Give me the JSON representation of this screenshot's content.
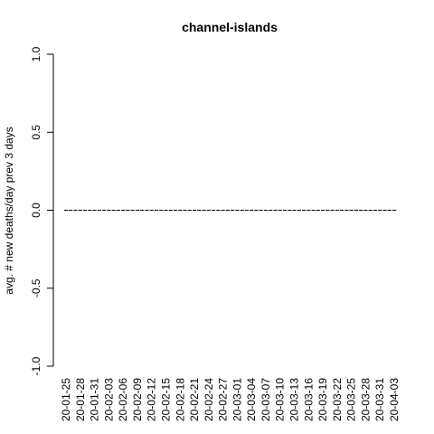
{
  "chart_data": {
    "type": "bar",
    "title": "channel-islands",
    "xlabel": "",
    "ylabel": "avg. # new deaths/day prev  3  days",
    "ylim": [
      -1.0,
      1.0
    ],
    "yticks": [
      "-1.0",
      "-0.5",
      "0.0",
      "0.5",
      "1.0"
    ],
    "ytick_values": [
      -1.0,
      -0.5,
      0.0,
      0.5,
      1.0
    ],
    "xtick_labels": [
      "20-01-25",
      "20-01-28",
      "20-01-31",
      "20-02-03",
      "20-02-06",
      "20-02-09",
      "20-02-12",
      "20-02-15",
      "20-02-18",
      "20-02-21",
      "20-02-24",
      "20-02-27",
      "20-03-01",
      "20-03-04",
      "20-03-07",
      "20-03-10",
      "20-03-13",
      "20-03-16",
      "20-03-19",
      "20-03-22",
      "20-03-25",
      "20-03-28",
      "20-03-31",
      "20-04-03"
    ],
    "x_start": "20-01-25",
    "x_end": "20-04-03",
    "values_note": "all daily values are 0",
    "values": [
      0,
      0,
      0,
      0,
      0,
      0,
      0,
      0,
      0,
      0,
      0,
      0,
      0,
      0,
      0,
      0,
      0,
      0,
      0,
      0,
      0,
      0,
      0,
      0,
      0,
      0,
      0,
      0,
      0,
      0,
      0,
      0,
      0,
      0,
      0,
      0,
      0,
      0,
      0,
      0,
      0,
      0,
      0,
      0,
      0,
      0,
      0,
      0,
      0,
      0,
      0,
      0,
      0,
      0,
      0,
      0,
      0,
      0,
      0,
      0,
      0,
      0,
      0,
      0,
      0,
      0,
      0,
      0,
      0,
      0
    ],
    "grid": false,
    "bar_color": "#000000"
  }
}
